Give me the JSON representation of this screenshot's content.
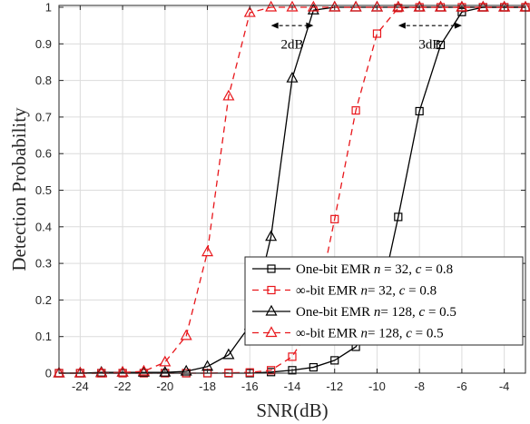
{
  "chart_data": {
    "type": "line",
    "title": "",
    "xlabel": "SNR(dB)",
    "ylabel": "Detection Probability",
    "xlim": [
      -25,
      -3
    ],
    "ylim": [
      0,
      1.005
    ],
    "xticks": [
      -24,
      -22,
      -20,
      -18,
      -16,
      -14,
      -12,
      -10,
      -8,
      -6,
      -4
    ],
    "xtick_labels": [
      "-24",
      "-22",
      "-20",
      "-18",
      "-16",
      "-14",
      "-12",
      "-10",
      "-8",
      "-6",
      "-4"
    ],
    "yticks": [
      0,
      0.1,
      0.2,
      0.3,
      0.4,
      0.5,
      0.6,
      0.7,
      0.8,
      0.9,
      1
    ],
    "ytick_labels": [
      "0",
      "0.1",
      "0.2",
      "0.3",
      "0.4",
      "0.5",
      "0.6",
      "0.7",
      "0.8",
      "0.9",
      "1"
    ],
    "grid": true,
    "legend_position": "bottom-right",
    "x": [
      -25,
      -24,
      -23,
      -22,
      -21,
      -20,
      -19,
      -18,
      -17,
      -16,
      -15,
      -14,
      -13,
      -12,
      -11,
      -10,
      -9,
      -8,
      -7,
      -6,
      -5,
      -4,
      -3
    ],
    "series": [
      {
        "name": "One-bit EMR n = 32, c = 0.8",
        "legend": {
          "prefix": "One-bit EMR ",
          "var1": "n",
          "mid": " = 32, ",
          "var2": "c",
          "suffix": " = 0.8"
        },
        "color": "#000000",
        "dash": "solid",
        "marker": "square",
        "values": [
          0,
          0,
          0,
          0,
          0,
          0,
          0,
          0,
          0,
          0,
          0.003,
          0.008,
          0.016,
          0.035,
          0.072,
          0.16,
          0.427,
          0.716,
          0.897,
          0.987,
          1,
          1,
          1
        ]
      },
      {
        "name": "∞-bit EMR n= 32, c = 0.8",
        "legend": {
          "prefix": "∞-bit EMR ",
          "var1": "n",
          "mid": "= 32, ",
          "var2": "c",
          "suffix": " = 0.8"
        },
        "color": "#e8161b",
        "dash": "dashed",
        "marker": "square",
        "values": [
          0,
          0,
          0,
          0,
          0,
          0,
          0,
          0,
          0.001,
          0.002,
          0.008,
          0.045,
          0.14,
          0.421,
          0.718,
          0.928,
          0.998,
          1,
          1,
          1,
          1,
          1,
          1
        ]
      },
      {
        "name": "One-bit EMR n= 128, c = 0.5",
        "legend": {
          "prefix": "One-bit EMR ",
          "var1": "n",
          "mid": "= 128, ",
          "var2": "c",
          "suffix": " = 0.5"
        },
        "color": "#000000",
        "dash": "solid",
        "marker": "triangle",
        "values": [
          0,
          0,
          0.002,
          0.002,
          0.002,
          0.002,
          0.005,
          0.018,
          0.05,
          0.13,
          0.373,
          0.806,
          0.992,
          1,
          1,
          1,
          1,
          1,
          1,
          1,
          1,
          1,
          1
        ]
      },
      {
        "name": "∞-bit EMR n= 128, c = 0.5",
        "legend": {
          "prefix": "∞-bit EMR ",
          "var1": "n",
          "mid": "= 128, ",
          "var2": "c",
          "suffix": " = 0.5"
        },
        "color": "#e8161b",
        "dash": "dashed",
        "marker": "triangle",
        "values": [
          0,
          0,
          0,
          0.002,
          0.005,
          0.03,
          0.102,
          0.331,
          0.757,
          0.985,
          1,
          1,
          1,
          1,
          1,
          1,
          1,
          1,
          1,
          1,
          1,
          1,
          1
        ]
      }
    ],
    "annotations": [
      {
        "text": "2dB",
        "x_from": -15,
        "x_to": -13,
        "arrow_y": 0.95,
        "label_y": 0.9
      },
      {
        "text": "3dB",
        "x_from": -9,
        "x_to": -6,
        "arrow_y": 0.95,
        "label_y": 0.9
      }
    ]
  }
}
